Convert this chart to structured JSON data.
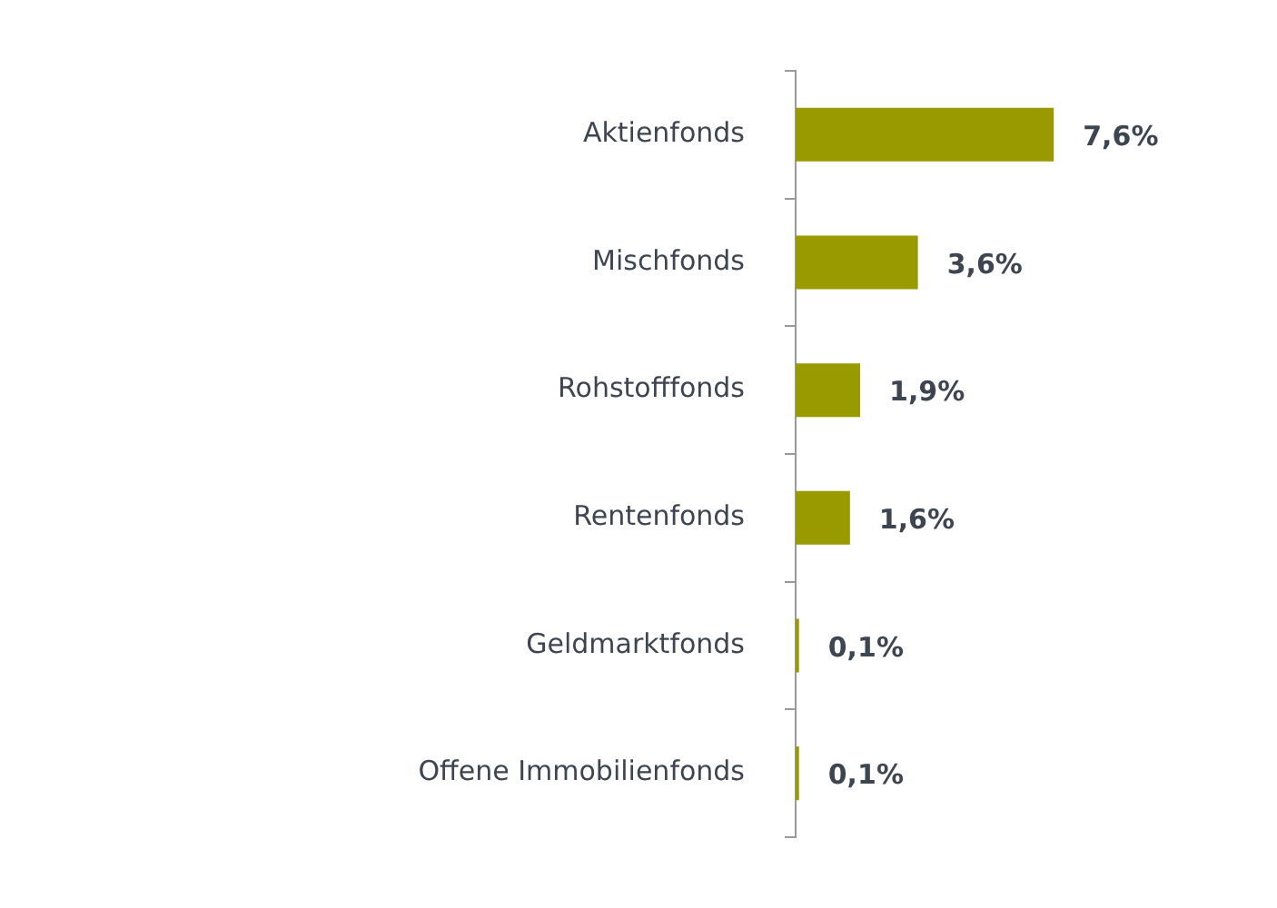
{
  "chart_data": {
    "type": "bar",
    "orientation": "horizontal",
    "categories": [
      "Aktienfonds",
      "Mischfonds",
      "Rohstofffonds",
      "Rentenfonds",
      "Geldmarktfonds",
      "Offene Immobilienfonds"
    ],
    "values": [
      7.6,
      3.6,
      1.9,
      1.6,
      0.1,
      0.1
    ],
    "value_labels": [
      "7,6%",
      "3,6%",
      "1,9%",
      "1,6%",
      "0,1%",
      "0,1%"
    ],
    "color": "#999900",
    "tick_labels": "y"
  }
}
